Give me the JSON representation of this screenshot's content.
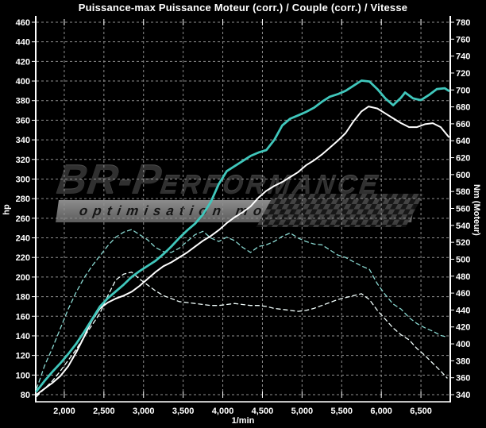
{
  "title": "Puissance-max Puissance Moteur (corr.) / Couple (corr.) / Vitesse",
  "watermark": {
    "brand_prefix": "BR-P",
    "brand_rest": "ERFORMANCE",
    "tagline": "optimisation moteur"
  },
  "chart_data": {
    "type": "line",
    "title": "Puissance-max Puissance Moteur (corr.) / Couple (corr.) / Vitesse",
    "xlabel": "1/min",
    "ylabel_left": "hp",
    "ylabel_right": "Nm (Moteur)",
    "grid": true,
    "legend": "none",
    "background": "#000000",
    "grid_color": "#8f8f8f",
    "axis_color": "#ffffff",
    "x_range": [
      1650,
      6860
    ],
    "y_left": {
      "min": 80,
      "max": 460,
      "step": 20,
      "unit": "hp"
    },
    "y_right": {
      "min": 340,
      "max": 780,
      "step": 20,
      "unit": "Nm"
    },
    "x_ticks": [
      {
        "value": 2000,
        "label": "2,000"
      },
      {
        "value": 2500,
        "label": "2,500"
      },
      {
        "value": 3000,
        "label": "3,000"
      },
      {
        "value": 3500,
        "label": "3,500"
      },
      {
        "value": 4000,
        "label": "4,000"
      },
      {
        "value": 4500,
        "label": "4,500"
      },
      {
        "value": 5000,
        "label": "5,000"
      },
      {
        "value": 5500,
        "label": "5,500"
      },
      {
        "value": 6000,
        "label": "6,000"
      },
      {
        "value": 6500,
        "label": "6,500"
      }
    ],
    "series": [
      {
        "name": "couple-origine",
        "axis": "right",
        "style": "dashed",
        "color": "#8ad9d2",
        "width": 1.3,
        "points": [
          [
            1650,
            347
          ],
          [
            1700,
            360
          ],
          [
            1750,
            374
          ],
          [
            1850,
            395
          ],
          [
            1950,
            418
          ],
          [
            2050,
            441
          ],
          [
            2150,
            461
          ],
          [
            2250,
            478
          ],
          [
            2350,
            492
          ],
          [
            2450,
            504
          ],
          [
            2550,
            516
          ],
          [
            2650,
            526
          ],
          [
            2750,
            532
          ],
          [
            2850,
            535
          ],
          [
            2950,
            529
          ],
          [
            3050,
            523
          ],
          [
            3150,
            514
          ],
          [
            3250,
            509
          ],
          [
            3350,
            508
          ],
          [
            3450,
            513
          ],
          [
            3550,
            521
          ],
          [
            3650,
            529
          ],
          [
            3750,
            533
          ],
          [
            3850,
            525
          ],
          [
            3950,
            521
          ],
          [
            4050,
            526
          ],
          [
            4150,
            522
          ],
          [
            4250,
            514
          ],
          [
            4350,
            508
          ],
          [
            4450,
            515
          ],
          [
            4550,
            517
          ],
          [
            4650,
            521
          ],
          [
            4750,
            527
          ],
          [
            4850,
            531
          ],
          [
            4950,
            525
          ],
          [
            5050,
            521
          ],
          [
            5150,
            518
          ],
          [
            5250,
            517
          ],
          [
            5350,
            511
          ],
          [
            5450,
            505
          ],
          [
            5550,
            502
          ],
          [
            5650,
            497
          ],
          [
            5750,
            492
          ],
          [
            5850,
            488
          ],
          [
            5950,
            471
          ],
          [
            6050,
            458
          ],
          [
            6150,
            447
          ],
          [
            6250,
            441
          ],
          [
            6350,
            431
          ],
          [
            6450,
            424
          ],
          [
            6550,
            419
          ],
          [
            6650,
            415
          ],
          [
            6750,
            410
          ],
          [
            6830,
            408
          ]
        ]
      },
      {
        "name": "puissance-origine",
        "axis": "left",
        "style": "dashed",
        "color": "#f2fffd",
        "width": 1.3,
        "points": [
          [
            1650,
            78
          ],
          [
            1750,
            86
          ],
          [
            1850,
            94
          ],
          [
            1950,
            104
          ],
          [
            2050,
            115
          ],
          [
            2150,
            126
          ],
          [
            2250,
            139
          ],
          [
            2350,
            151
          ],
          [
            2450,
            163
          ],
          [
            2550,
            181
          ],
          [
            2650,
            197
          ],
          [
            2750,
            203
          ],
          [
            2850,
            205
          ],
          [
            2950,
            198
          ],
          [
            3050,
            192
          ],
          [
            3150,
            186
          ],
          [
            3250,
            181
          ],
          [
            3350,
            178
          ],
          [
            3450,
            175
          ],
          [
            3550,
            174
          ],
          [
            3650,
            173
          ],
          [
            3750,
            172
          ],
          [
            3850,
            171
          ],
          [
            3950,
            171
          ],
          [
            4050,
            172
          ],
          [
            4150,
            173
          ],
          [
            4250,
            172
          ],
          [
            4350,
            171
          ],
          [
            4450,
            171
          ],
          [
            4550,
            170
          ],
          [
            4650,
            168
          ],
          [
            4750,
            167
          ],
          [
            4850,
            166
          ],
          [
            4950,
            165
          ],
          [
            5050,
            166
          ],
          [
            5150,
            168
          ],
          [
            5250,
            171
          ],
          [
            5350,
            174
          ],
          [
            5450,
            177
          ],
          [
            5550,
            179
          ],
          [
            5650,
            181
          ],
          [
            5750,
            183
          ],
          [
            5850,
            177
          ],
          [
            5950,
            166
          ],
          [
            6050,
            157
          ],
          [
            6150,
            148
          ],
          [
            6250,
            141
          ],
          [
            6350,
            136
          ],
          [
            6450,
            127
          ],
          [
            6550,
            120
          ],
          [
            6650,
            112
          ],
          [
            6750,
            104
          ],
          [
            6830,
            97
          ]
        ]
      },
      {
        "name": "puissance-corrigee",
        "axis": "left",
        "style": "solid",
        "color": "#ffffff",
        "width": 2,
        "points": [
          [
            1650,
            80
          ],
          [
            1750,
            86
          ],
          [
            1850,
            92
          ],
          [
            1950,
            99
          ],
          [
            2050,
            109
          ],
          [
            2150,
            123
          ],
          [
            2250,
            139
          ],
          [
            2350,
            156
          ],
          [
            2450,
            168
          ],
          [
            2550,
            174
          ],
          [
            2650,
            178
          ],
          [
            2750,
            181
          ],
          [
            2850,
            185
          ],
          [
            2950,
            191
          ],
          [
            3050,
            198
          ],
          [
            3150,
            205
          ],
          [
            3250,
            211
          ],
          [
            3350,
            215
          ],
          [
            3450,
            220
          ],
          [
            3550,
            225
          ],
          [
            3650,
            231
          ],
          [
            3750,
            237
          ],
          [
            3850,
            242
          ],
          [
            3950,
            248
          ],
          [
            4050,
            255
          ],
          [
            4150,
            261
          ],
          [
            4250,
            266
          ],
          [
            4350,
            272
          ],
          [
            4450,
            281
          ],
          [
            4550,
            288
          ],
          [
            4650,
            293
          ],
          [
            4750,
            297
          ],
          [
            4850,
            302
          ],
          [
            4950,
            307
          ],
          [
            5050,
            314
          ],
          [
            5150,
            319
          ],
          [
            5250,
            325
          ],
          [
            5350,
            332
          ],
          [
            5450,
            339
          ],
          [
            5550,
            347
          ],
          [
            5650,
            359
          ],
          [
            5750,
            369
          ],
          [
            5840,
            374
          ],
          [
            5950,
            372
          ],
          [
            6050,
            367
          ],
          [
            6150,
            362
          ],
          [
            6250,
            357
          ],
          [
            6350,
            353
          ],
          [
            6450,
            353
          ],
          [
            6550,
            356
          ],
          [
            6650,
            357
          ],
          [
            6750,
            353
          ],
          [
            6850,
            343
          ]
        ]
      },
      {
        "name": "couple-corrige",
        "axis": "right",
        "style": "solid",
        "color": "#40c7bc",
        "width": 2.8,
        "points": [
          [
            1650,
            344
          ],
          [
            1750,
            356
          ],
          [
            1850,
            367
          ],
          [
            1950,
            377
          ],
          [
            2050,
            388
          ],
          [
            2150,
            400
          ],
          [
            2250,
            414
          ],
          [
            2350,
            429
          ],
          [
            2450,
            444
          ],
          [
            2550,
            454
          ],
          [
            2650,
            462
          ],
          [
            2750,
            470
          ],
          [
            2850,
            479
          ],
          [
            2950,
            486
          ],
          [
            3050,
            492
          ],
          [
            3150,
            498
          ],
          [
            3250,
            506
          ],
          [
            3350,
            515
          ],
          [
            3450,
            525
          ],
          [
            3550,
            534
          ],
          [
            3650,
            542
          ],
          [
            3750,
            553
          ],
          [
            3850,
            568
          ],
          [
            3950,
            589
          ],
          [
            4050,
            604
          ],
          [
            4150,
            610
          ],
          [
            4250,
            616
          ],
          [
            4350,
            622
          ],
          [
            4450,
            626
          ],
          [
            4550,
            629
          ],
          [
            4650,
            641
          ],
          [
            4750,
            658
          ],
          [
            4850,
            666
          ],
          [
            4950,
            670
          ],
          [
            5050,
            674
          ],
          [
            5150,
            679
          ],
          [
            5250,
            686
          ],
          [
            5350,
            692
          ],
          [
            5450,
            695
          ],
          [
            5550,
            699
          ],
          [
            5650,
            705
          ],
          [
            5750,
            711
          ],
          [
            5850,
            710
          ],
          [
            5950,
            701
          ],
          [
            6050,
            690
          ],
          [
            6150,
            682
          ],
          [
            6250,
            691
          ],
          [
            6300,
            697
          ],
          [
            6400,
            690
          ],
          [
            6500,
            688
          ],
          [
            6600,
            694
          ],
          [
            6700,
            701
          ],
          [
            6800,
            702
          ],
          [
            6850,
            699
          ]
        ]
      }
    ]
  }
}
